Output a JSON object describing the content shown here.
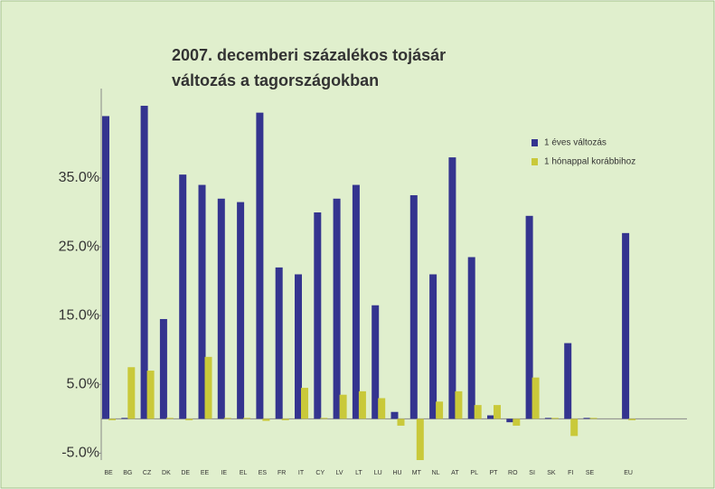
{
  "chart_data": {
    "type": "bar",
    "title": [
      "2007. decemberi százalékos tojásár",
      "változás a tagországokban"
    ],
    "categories": [
      "BE",
      "BG",
      "CZ",
      "DK",
      "DE",
      "EE",
      "IE",
      "EL",
      "ES",
      "FR",
      "IT",
      "CY",
      "LV",
      "LT",
      "LU",
      "HU",
      "MT",
      "NL",
      "AT",
      "PL",
      "PT",
      "RO",
      "SI",
      "SK",
      "FI",
      "SE",
      null,
      "EU"
    ],
    "series": [
      {
        "name": "1 éves változás",
        "color": "#34348f",
        "values": [
          44,
          0,
          45.5,
          14.5,
          35.5,
          34,
          32,
          31.5,
          44.5,
          22,
          21,
          30,
          32,
          34,
          16.5,
          1,
          32.5,
          21,
          38,
          23.5,
          0.5,
          -0.5,
          29.5,
          0,
          11,
          0,
          null,
          27
        ]
      },
      {
        "name": "1 hónappal korábbihoz",
        "color": "#c9c93a",
        "values": [
          -0.2,
          7.5,
          7,
          0,
          -0.2,
          9,
          0,
          0,
          -0.3,
          -0.2,
          4.5,
          0,
          3.5,
          4,
          3,
          -1,
          -6,
          2.5,
          4,
          2,
          2,
          -1,
          6,
          0,
          -2.5,
          0,
          null,
          -0.2
        ]
      }
    ],
    "ylim": [
      -6,
      48
    ],
    "yticks": [
      {
        "value": -5,
        "label": "-5.0%"
      },
      {
        "value": 5,
        "label": "5.0%"
      },
      {
        "value": 15,
        "label": "15.0%"
      },
      {
        "value": 25,
        "label": "25.0%"
      },
      {
        "value": 35,
        "label": "35.0%"
      }
    ],
    "legend": "top-right"
  }
}
